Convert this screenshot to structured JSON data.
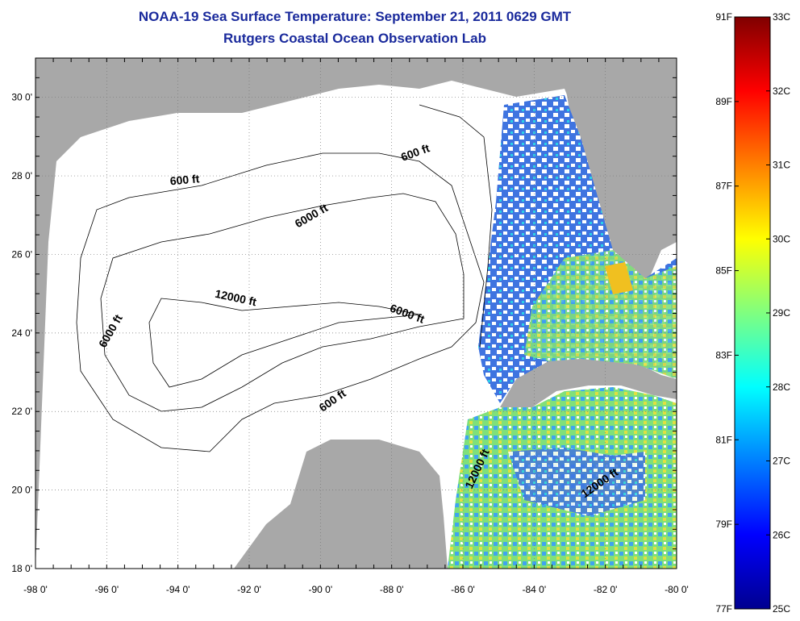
{
  "title": {
    "line1": "NOAA-19 Sea Surface Temperature:  September 21, 2011 0629 GMT",
    "line2": "Rutgers Coastal Ocean Observation Lab"
  },
  "map": {
    "lon_range": [
      -98,
      -80
    ],
    "lat_range": [
      18,
      31
    ],
    "lon_ticks": [
      {
        "value": -98,
        "label": "-98 0'"
      },
      {
        "value": -96,
        "label": "-96 0'"
      },
      {
        "value": -94,
        "label": "-94 0'"
      },
      {
        "value": -92,
        "label": "-92 0'"
      },
      {
        "value": -90,
        "label": "-90 0'"
      },
      {
        "value": -88,
        "label": "-88 0'"
      },
      {
        "value": -86,
        "label": "-86 0'"
      },
      {
        "value": -84,
        "label": "-84 0'"
      },
      {
        "value": -82,
        "label": "-82 0'"
      },
      {
        "value": -80,
        "label": "-80 0'"
      }
    ],
    "lat_ticks": [
      {
        "value": 18,
        "label": "18 0'"
      },
      {
        "value": 20,
        "label": "20 0'"
      },
      {
        "value": 22,
        "label": "22 0'"
      },
      {
        "value": 24,
        "label": "24 0'"
      },
      {
        "value": 26,
        "label": "26 0'"
      },
      {
        "value": 28,
        "label": "28 0'"
      },
      {
        "value": 30,
        "label": "30 0'"
      }
    ],
    "contour_labels": [
      {
        "text": "600 ft",
        "lon": -87.3,
        "lat": 28.5,
        "angle": -20
      },
      {
        "text": "600 ft",
        "lon": -93.8,
        "lat": 27.8,
        "angle": -5
      },
      {
        "text": "6000 ft",
        "lon": -90.2,
        "lat": 26.9,
        "angle": -30
      },
      {
        "text": "12000 ft",
        "lon": -92.4,
        "lat": 24.8,
        "angle": 12
      },
      {
        "text": "6000 ft",
        "lon": -87.6,
        "lat": 24.4,
        "angle": 20
      },
      {
        "text": "6000 ft",
        "lon": -95.8,
        "lat": 24.0,
        "angle": -60
      },
      {
        "text": "600 ft",
        "lon": -89.6,
        "lat": 22.2,
        "angle": -35
      },
      {
        "text": "12000 ft",
        "lon": -85.5,
        "lat": 20.5,
        "angle": -65
      },
      {
        "text": "12000 ft",
        "lon": -82.1,
        "lat": 20.1,
        "angle": -35
      }
    ],
    "colors": {
      "land": "#a8a8a8",
      "ocean": "#ffffff",
      "grid": "#888888"
    }
  },
  "colorbar": {
    "celsius": [
      "25C",
      "26C",
      "27C",
      "28C",
      "29C",
      "30C",
      "31C",
      "32C",
      "33C"
    ],
    "fahrenheit": [
      "77F",
      "79F",
      "81F",
      "83F",
      "85F",
      "87F",
      "89F",
      "91F"
    ],
    "range_c": [
      25,
      33
    ],
    "range_f": [
      77,
      91
    ]
  }
}
